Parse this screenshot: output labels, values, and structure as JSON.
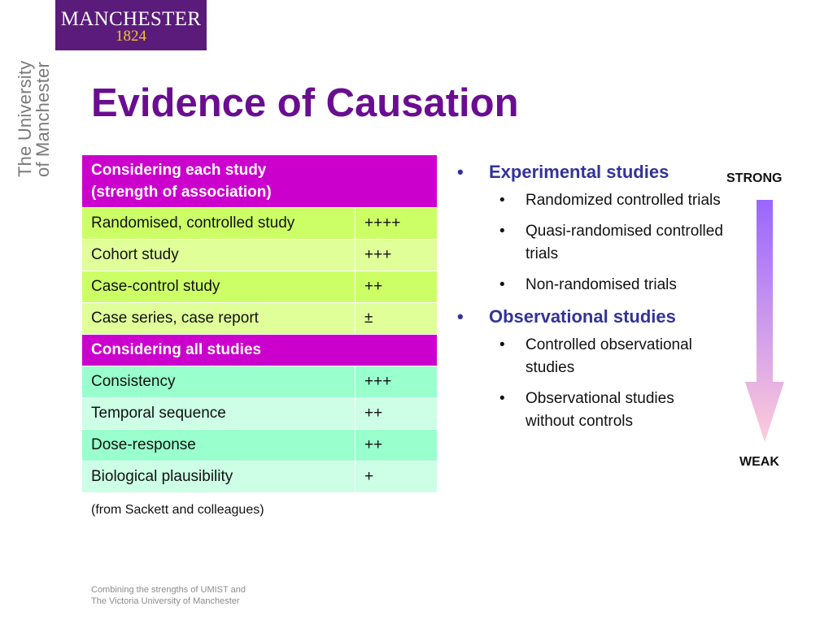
{
  "logo": {
    "line1": "MANCHESTER",
    "line2": "1824"
  },
  "side_wordmark": {
    "line1": "The University",
    "line2": "of Manchester"
  },
  "title": "Evidence of Causation",
  "table": {
    "header1_line1": "Considering each study",
    "header1_line2": "(strength of association)",
    "group1": [
      {
        "label": "Randomised, controlled study",
        "value": "++++"
      },
      {
        "label": "Cohort study",
        "value": "+++"
      },
      {
        "label": "Case-control study",
        "value": "++"
      },
      {
        "label": "Case series, case report",
        "value": "±"
      }
    ],
    "header2": "Considering all studies",
    "group2": [
      {
        "label": "Consistency",
        "value": "+++"
      },
      {
        "label": "Temporal sequence",
        "value": "++"
      },
      {
        "label": "Dose-response",
        "value": "++"
      },
      {
        "label": "Biological plausibility",
        "value": "+"
      }
    ]
  },
  "source": "(from Sackett and colleagues)",
  "bullets": {
    "experimental": {
      "heading": "Experimental studies",
      "items": [
        "Randomized controlled trials",
        "Quasi-randomised controlled trials",
        "Non-randomised trials"
      ]
    },
    "observational": {
      "heading": "Observational studies",
      "items": [
        "Controlled observational studies",
        "Observational studies without controls"
      ]
    }
  },
  "scale": {
    "top": "STRONG",
    "bottom": "WEAK"
  },
  "footer": {
    "line1": "Combining the strengths of UMIST and",
    "line2": "The Victoria University of Manchester"
  },
  "colors": {
    "brand_purple": "#5b1b7a",
    "title_purple": "#6a0d91",
    "header_magenta": "#cc00cc",
    "green_dark": "#ccff66",
    "green_light": "#e0ff99",
    "teal_dark": "#99ffcc",
    "teal_light": "#ccffe6",
    "bullet_heading": "#333399",
    "arrow_top": "#9966ff",
    "arrow_bottom": "#ffccd9"
  },
  "icons": {
    "bullet": "•",
    "scale_arrow": "down-arrow-icon"
  }
}
